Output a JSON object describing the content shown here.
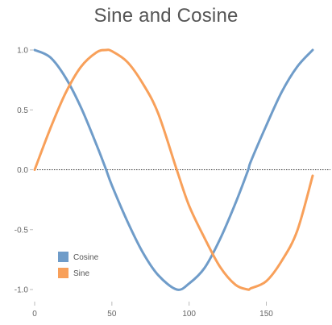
{
  "chart_data": {
    "type": "line",
    "title": "Sine and Cosine",
    "xlabel": "",
    "ylabel": "",
    "xlim": [
      0,
      180
    ],
    "ylim": [
      -1.0,
      1.0
    ],
    "x_ticks": [
      0,
      50,
      100,
      150
    ],
    "x_tick_labels": [
      "0",
      "50",
      "100",
      "150"
    ],
    "y_ticks": [
      1.0,
      0.5,
      0.0,
      -0.5,
      -1.0
    ],
    "y_tick_labels": [
      "1.0",
      "0.5",
      "0.0",
      "-0.5",
      "-1.0"
    ],
    "grid": false,
    "zero_line": "dotted",
    "legend_position": "bottom-left",
    "x": [
      0,
      10,
      20,
      30,
      40,
      46,
      50,
      60,
      70,
      80,
      92,
      100,
      110,
      120,
      130,
      138,
      140,
      150,
      160,
      170,
      180
    ],
    "series": [
      {
        "name": "Cosine",
        "color": "#6f9cc9",
        "values": [
          1.0,
          0.94,
          0.77,
          0.52,
          0.21,
          0.01,
          -0.13,
          -0.43,
          -0.69,
          -0.88,
          -1.0,
          -0.95,
          -0.82,
          -0.58,
          -0.28,
          -0.01,
          0.07,
          0.37,
          0.65,
          0.86,
          1.0
        ]
      },
      {
        "name": "Sine",
        "color": "#f8a05a",
        "values": [
          0.0,
          0.34,
          0.64,
          0.86,
          0.98,
          1.0,
          0.99,
          0.9,
          0.72,
          0.47,
          0.0,
          -0.3,
          -0.57,
          -0.81,
          -0.96,
          -1.0,
          -0.99,
          -0.93,
          -0.76,
          -0.51,
          -0.05
        ]
      }
    ]
  }
}
